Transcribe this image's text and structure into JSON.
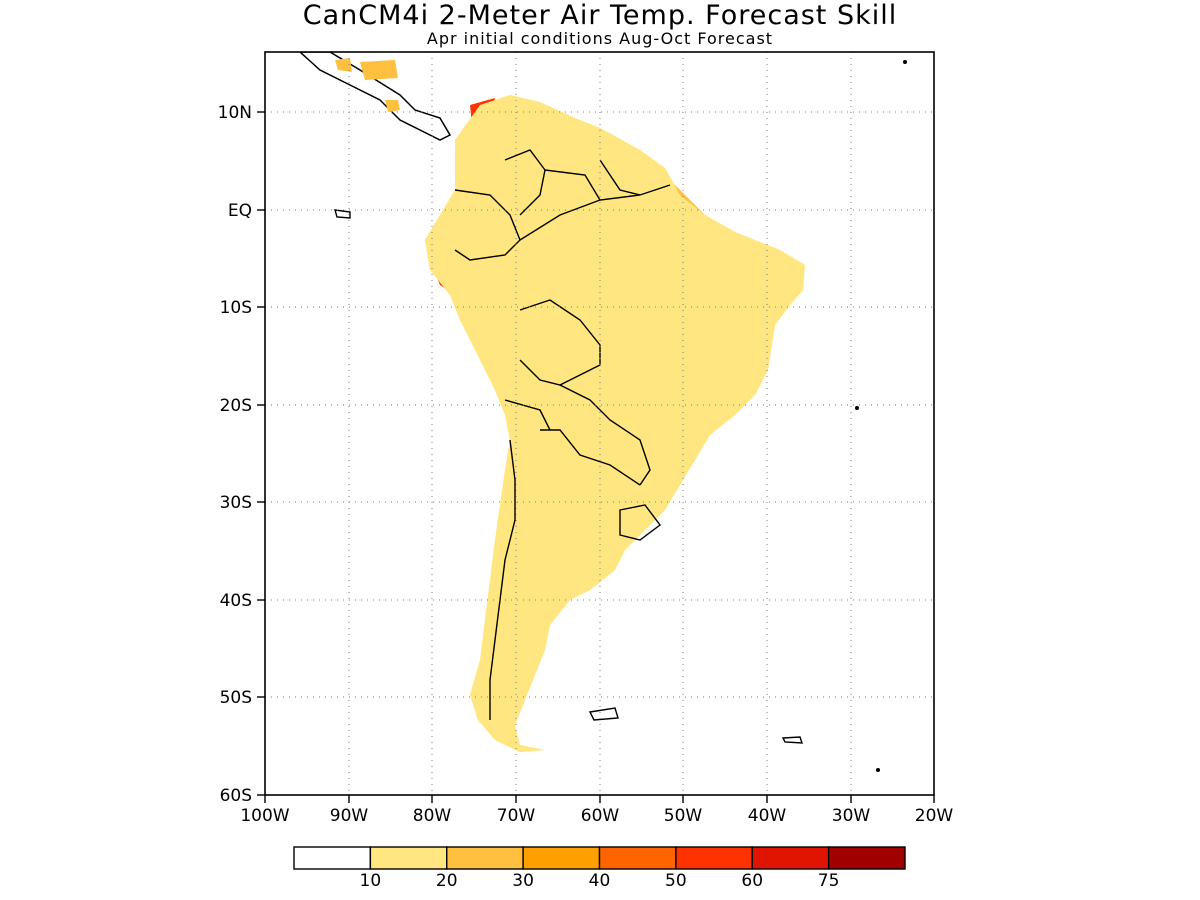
{
  "title": "CanCM4i 2-Meter Air Temp. Forecast Skill",
  "subtitle": "Apr initial conditions  Aug-Oct Forecast",
  "map": {
    "lon_range": [
      -100,
      -20
    ],
    "lat_range": [
      -60,
      15
    ],
    "y_ticks": [
      "10N",
      "EQ",
      "10S",
      "20S",
      "30S",
      "40S",
      "50S",
      "60S"
    ],
    "x_ticks": [
      "100W",
      "90W",
      "80W",
      "70W",
      "60W",
      "50W",
      "40W",
      "30W",
      "20W"
    ],
    "grid": true
  },
  "legend": {
    "labels": [
      "10",
      "20",
      "30",
      "40",
      "50",
      "60",
      "75"
    ],
    "colors": [
      "#ffffff",
      "#ffe680",
      "#ffc040",
      "#ffa000",
      "#ff6400",
      "#ff3200",
      "#e01400",
      "#a00000"
    ]
  }
}
